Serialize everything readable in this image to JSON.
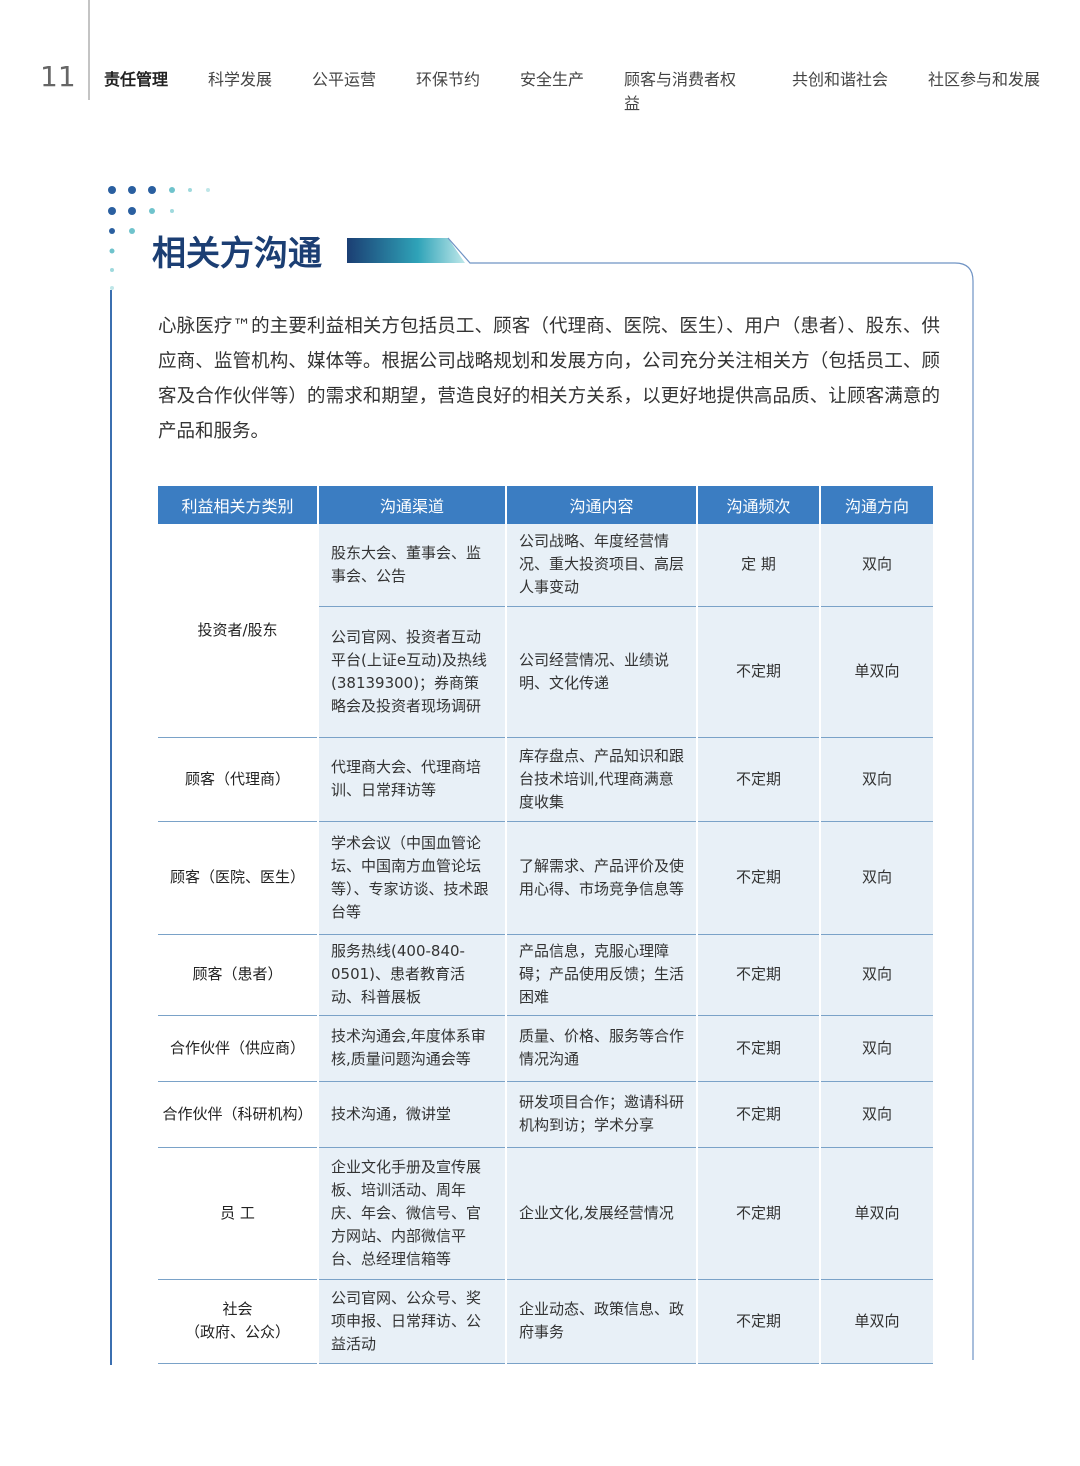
{
  "header": {
    "page_number": "11",
    "nav": [
      "责任管理",
      "科学发展",
      "公平运营",
      "环保节约",
      "安全生产",
      "顾客与消费者权益",
      "共创和谐社会",
      "社区参与和发展"
    ]
  },
  "section": {
    "title": "相关方沟通",
    "intro": "心脉医疗™的主要利益相关方包括员工、顾客（代理商、医院、医生）、用户（患者）、股东、供应商、监管机构、媒体等。根据公司战略规划和发展方向，公司充分关注相关方（包括员工、顾客及合作伙伴等）的需求和期望，营造良好的相关方关系，以更好地提供高品质、让顾客满意的产品和服务。"
  },
  "table": {
    "headers": [
      "利益相关方类别",
      "沟通渠道",
      "沟通内容",
      "沟通频次",
      "沟通方向"
    ],
    "groups": [
      {
        "category": "投资者/股东",
        "rows": [
          [
            "股东大会、董事会、监事会、公告",
            "公司战略、年度经营情况、重大投资项目、高层人事变动",
            "定 期",
            "双向"
          ],
          [
            "公司官网、投资者互动平台(上证e互动)及热线(38139300)；券商策略会及投资者现场调研",
            "公司经营情况、业绩说明、文化传递",
            "不定期",
            "单双向"
          ]
        ]
      },
      {
        "category": "顾客（代理商）",
        "rows": [
          [
            "代理商大会、代理商培训、日常拜访等",
            "库存盘点、产品知识和跟台技术培训,代理商满意度收集",
            "不定期",
            "双向"
          ]
        ]
      },
      {
        "category": "顾客（医院、医生）",
        "rows": [
          [
            "学术会议（中国血管论坛、中国南方血管论坛等）、专家访谈、技术跟台等",
            "了解需求、产品评价及使用心得、市场竞争信息等",
            "不定期",
            "双向"
          ]
        ]
      },
      {
        "category": "顾客（患者）",
        "rows": [
          [
            "服务热线(400-840-0501)、患者教育活动、科普展板",
            "产品信息，克服心理障碍；产品使用反馈；生活困难",
            "不定期",
            "双向"
          ]
        ]
      },
      {
        "category": "合作伙伴（供应商）",
        "rows": [
          [
            "技术沟通会,年度体系审核,质量问题沟通会等",
            "质量、价格、服务等合作情况沟通",
            "不定期",
            "双向"
          ]
        ]
      },
      {
        "category": "合作伙伴（科研机构）",
        "rows": [
          [
            "技术沟通，微讲堂",
            "研发项目合作；邀请科研机构到访；学术分享",
            "不定期",
            "双向"
          ]
        ]
      },
      {
        "category": "员 工",
        "rows": [
          [
            "企业文化手册及宣传展板、培训活动、周年庆、年会、微信号、官方网站、内部微信平台、总经理信箱等",
            "企业文化,发展经营情况",
            "不定期",
            "单双向"
          ]
        ]
      },
      {
        "category": "社会\n（政府、公众）",
        "rows": [
          [
            "公司官网、公众号、奖项申报、日常拜访、公益活动",
            "企业动态、政策信息、政府事务",
            "不定期",
            "单双向"
          ]
        ]
      }
    ]
  }
}
